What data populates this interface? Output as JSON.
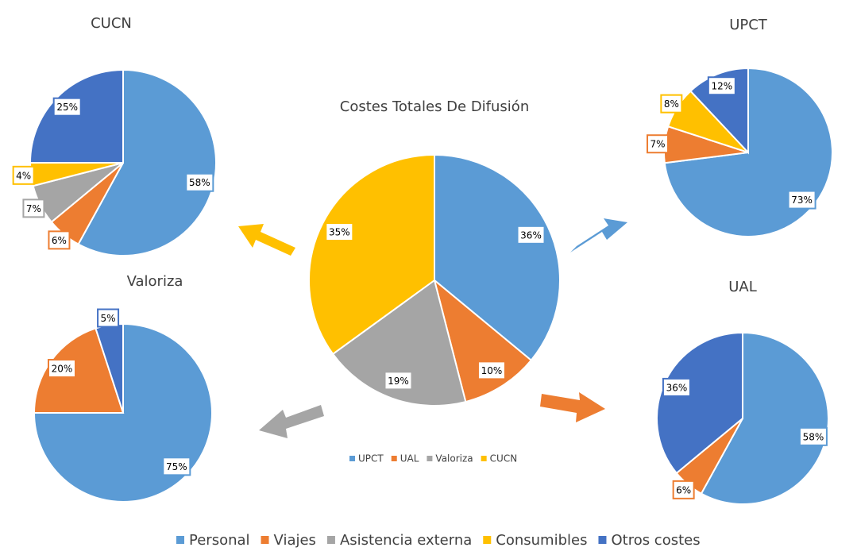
{
  "chart_data": [
    {
      "type": "pie",
      "title": "Costes Totales De Difusión",
      "categories": [
        "UPCT",
        "UAL",
        "Valoriza",
        "CUCN"
      ],
      "values": [
        36,
        10,
        19,
        35
      ],
      "value_labels": [
        "36%",
        "10%",
        "19%",
        "35%"
      ],
      "colors": [
        "#5b9bd5",
        "#ed7d31",
        "#a5a5a5",
        "#ffc000"
      ]
    },
    {
      "type": "pie",
      "title": "CUCN",
      "values": [
        58,
        6,
        7,
        4,
        25
      ],
      "value_labels": [
        "58%",
        "6%",
        "7%",
        "4%",
        "25%"
      ]
    },
    {
      "type": "pie",
      "title": "UPCT",
      "values": [
        73,
        7,
        null,
        8,
        12
      ],
      "value_labels": [
        "73%",
        "7%",
        null,
        "8%",
        "12%"
      ]
    },
    {
      "type": "pie",
      "title": "Valoriza",
      "values": [
        75,
        20,
        null,
        null,
        5
      ],
      "value_labels": [
        "75%",
        "20%",
        null,
        null,
        "5%"
      ]
    },
    {
      "type": "pie",
      "title": "UAL",
      "values": [
        58,
        6,
        null,
        null,
        36
      ],
      "value_labels": [
        "58%",
        "6%",
        null,
        null,
        "36%"
      ]
    }
  ],
  "legend": {
    "categories": [
      "Personal",
      "Viajes",
      "Asistencia externa",
      "Consumibles",
      "Otros costes"
    ],
    "colors": [
      "#5b9bd5",
      "#ed7d31",
      "#a5a5a5",
      "#ffc000",
      "#4472c4"
    ]
  }
}
